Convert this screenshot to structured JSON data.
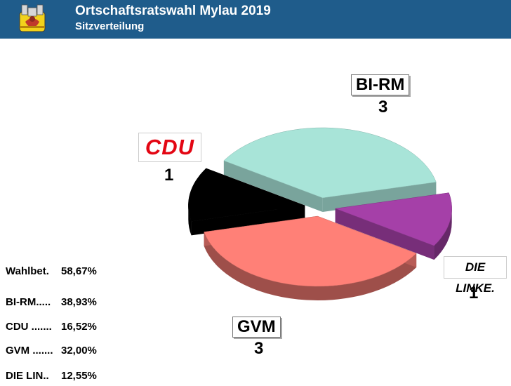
{
  "header": {
    "title": "Ortschaftsratswahl Mylau 2019",
    "subtitle": "Sitzverteilung",
    "crest_icon": "town-crest-icon"
  },
  "chart_data": {
    "type": "pie",
    "title": "Sitzverteilung",
    "categories": [
      "BI-RM",
      "DIE LINKE.",
      "GVM",
      "CDU"
    ],
    "values": [
      3,
      1,
      3,
      1
    ],
    "colors": [
      "#a8e4d8",
      "#a540a8",
      "#ff8077",
      "#000000"
    ],
    "labels": {
      "BI-RM": {
        "name": "BI-RM",
        "seats": "3"
      },
      "DIE LINKE.": {
        "name": "DIE LINKE.",
        "seats": "1"
      },
      "GVM": {
        "name": "GVM",
        "seats": "3"
      },
      "CDU": {
        "name": "CDU",
        "seats": "1"
      }
    },
    "logo_text": {
      "cdu": "CDU",
      "linke": "DIE LINKE."
    },
    "three_d": true,
    "exploded": true
  },
  "stats": [
    {
      "label": "Wahlbet.",
      "dots": "",
      "value": "58,67%"
    },
    {
      "label": "BI-RM",
      "dots": ".....",
      "value": "38,93%"
    },
    {
      "label": "CDU",
      "dots": " .......",
      "value": "16,52%"
    },
    {
      "label": "GVM",
      "dots": " .......",
      "value": "32,00%"
    },
    {
      "label": "DIE LIN",
      "dots": "..",
      "value": "12,55%"
    }
  ]
}
